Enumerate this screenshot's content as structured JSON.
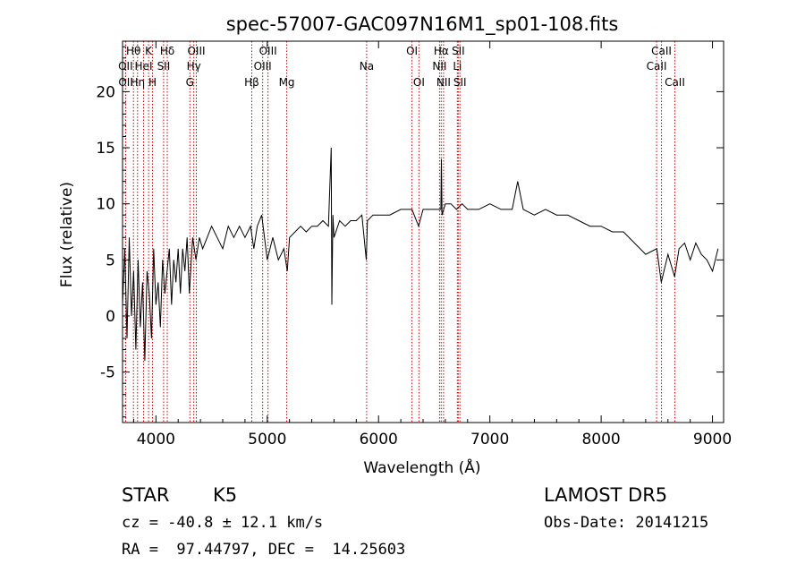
{
  "chart_data": {
    "type": "line",
    "title": "spec-57007-GAC097N16M1_sp01-108.fits",
    "xlabel": "Wavelength (Å)",
    "ylabel": "Flux (relative)",
    "xlim": [
      3700,
      9100
    ],
    "ylim": [
      -9.5,
      24.5
    ],
    "xticks": [
      4000,
      5000,
      6000,
      7000,
      8000,
      9000
    ],
    "yticks": [
      -5,
      0,
      5,
      10,
      15,
      20
    ],
    "grid": false,
    "line_color": "#000000",
    "marker_color": "#cc0000",
    "series": [
      {
        "x": [
          3700,
          3720,
          3740,
          3760,
          3780,
          3800,
          3820,
          3840,
          3860,
          3880,
          3900,
          3920,
          3940,
          3960,
          3980,
          4000,
          4020,
          4040,
          4060,
          4080,
          4100,
          4120,
          4140,
          4160,
          4180,
          4200,
          4220,
          4240,
          4260,
          4280,
          4300,
          4330,
          4360,
          4390,
          4420,
          4460,
          4500,
          4550,
          4600,
          4650,
          4700,
          4750,
          4800,
          4850,
          4880,
          4910,
          4950,
          5000,
          5050,
          5100,
          5150,
          5180,
          5200,
          5250,
          5300,
          5350,
          5400,
          5450,
          5500,
          5550,
          5575,
          5580,
          5590,
          5600,
          5650,
          5700,
          5750,
          5800,
          5850,
          5890,
          5900,
          5950,
          6000,
          6100,
          6200,
          6300,
          6360,
          6400,
          6450,
          6500,
          6560,
          6565,
          6570,
          6600,
          6650,
          6700,
          6750,
          6800,
          6900,
          7000,
          7100,
          7200,
          7250,
          7300,
          7400,
          7500,
          7600,
          7700,
          7800,
          7900,
          8000,
          8100,
          8200,
          8300,
          8400,
          8500,
          8540,
          8600,
          8660,
          8700,
          8750,
          8800,
          8850,
          8900,
          8950,
          9000,
          9050
        ],
        "y": [
          1,
          6,
          -2,
          7,
          0,
          4,
          -3,
          5,
          -1,
          3,
          -4,
          4,
          2,
          -2,
          6,
          1,
          3,
          -1,
          5,
          2,
          4,
          6,
          1,
          5,
          3,
          6,
          2,
          6,
          4,
          7,
          2,
          7,
          5,
          7,
          6,
          7,
          8,
          7,
          6,
          8,
          7,
          8,
          7,
          8,
          6,
          8,
          9,
          5,
          7,
          5,
          6,
          4,
          7,
          7.5,
          8,
          7.5,
          8,
          8,
          8.5,
          8,
          15,
          1,
          9,
          7,
          8.5,
          8,
          8.5,
          8.5,
          9,
          5,
          8.5,
          9,
          9,
          9,
          9.5,
          9.5,
          8,
          9.5,
          9.5,
          9.5,
          9.5,
          14,
          9,
          10,
          10,
          9.5,
          10,
          9.5,
          9.5,
          10,
          9.5,
          9.5,
          12,
          9.5,
          9,
          9.5,
          9,
          9,
          8.5,
          8,
          8,
          7.5,
          7.5,
          6.5,
          5.5,
          6,
          3,
          5.5,
          3.5,
          6,
          6.5,
          5,
          6.5,
          5.5,
          5,
          4,
          6
        ]
      }
    ],
    "lines": [
      {
        "label": "Hθ",
        "x": 3798,
        "row": 1
      },
      {
        "label": "OII",
        "x": 3727,
        "row": 2
      },
      {
        "label": "OII",
        "x": 3729,
        "row": 3
      },
      {
        "label": "Hη",
        "x": 3835,
        "row": 3
      },
      {
        "label": "K",
        "x": 3934,
        "row": 1
      },
      {
        "label": "HeI",
        "x": 3889,
        "row": 2
      },
      {
        "label": "H",
        "x": 3969,
        "row": 3
      },
      {
        "label": "Hδ",
        "x": 4102,
        "row": 1
      },
      {
        "label": "SII",
        "x": 4069,
        "row": 2
      },
      {
        "label": "OIII",
        "x": 4363,
        "row": 1
      },
      {
        "label": "Hγ",
        "x": 4340,
        "row": 2
      },
      {
        "label": "G",
        "x": 4305,
        "row": 3
      },
      {
        "label": "OIII",
        "x": 5007,
        "row": 1
      },
      {
        "label": "OIII",
        "x": 4959,
        "row": 2
      },
      {
        "label": "Hβ",
        "x": 4861,
        "row": 3
      },
      {
        "label": "Mg",
        "x": 5175,
        "row": 3
      },
      {
        "label": "Na",
        "x": 5893,
        "row": 2
      },
      {
        "label": "OI",
        "x": 6300,
        "row": 1
      },
      {
        "label": "OI",
        "x": 6363,
        "row": 3
      },
      {
        "label": "Hα",
        "x": 6563,
        "row": 1
      },
      {
        "label": "NII",
        "x": 6548,
        "row": 2
      },
      {
        "label": "NII",
        "x": 6584,
        "row": 3
      },
      {
        "label": "SII",
        "x": 6716,
        "row": 1
      },
      {
        "label": "Li",
        "x": 6708,
        "row": 2
      },
      {
        "label": "SII",
        "x": 6731,
        "row": 3
      },
      {
        "label": "CaII",
        "x": 8542,
        "row": 1
      },
      {
        "label": "CaII",
        "x": 8498,
        "row": 2
      },
      {
        "label": "CaII",
        "x": 8662,
        "row": 3
      }
    ]
  },
  "info": {
    "class_label": "STAR",
    "subclass": "K5",
    "survey": "LAMOST DR5",
    "cz": "cz = -40.8 ± 12.1 km/s",
    "obs_date": "Obs-Date: 20141215",
    "coords": "RA =  97.44797, DEC =  14.25603"
  }
}
